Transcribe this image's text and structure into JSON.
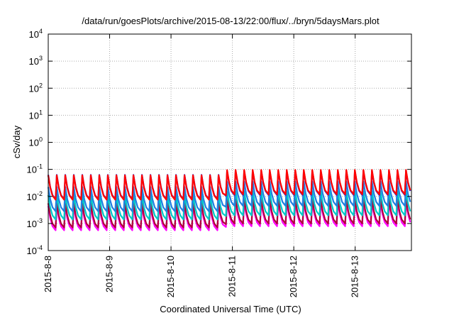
{
  "chart_data": {
    "type": "line",
    "title": "/data/run/goesPlots/archive/2015-08-13/22:00/flux/../bryn/5daysMars.plot",
    "xlabel": "Coordinated Universal Time (UTC)",
    "ylabel": "cSv/day",
    "xlim": [
      "2015-08-08",
      "2015-08-13 22:00"
    ],
    "ylim": [
      0.0001,
      10000
    ],
    "yscale": "log",
    "grid": true,
    "legend": "none",
    "x_ticks": [
      "2015-8-8",
      "2015-8-9",
      "2015-8-10",
      "2015-8-11",
      "2015-8-12",
      "2015-8-13"
    ],
    "y_ticks": [
      {
        "value": 0.0001,
        "base": "10",
        "exp": "-4"
      },
      {
        "value": 0.001,
        "base": "10",
        "exp": "-3"
      },
      {
        "value": 0.01,
        "base": "10",
        "exp": "-2"
      },
      {
        "value": 0.1,
        "base": "10",
        "exp": "-1"
      },
      {
        "value": 1,
        "base": "10",
        "exp": "0"
      },
      {
        "value": 10,
        "base": "10",
        "exp": "1"
      },
      {
        "value": 100,
        "base": "10",
        "exp": "2"
      },
      {
        "value": 1000,
        "base": "10",
        "exp": "3"
      },
      {
        "value": 10000,
        "base": "10",
        "exp": "4"
      }
    ],
    "x_start": "2015-08-08 00:00",
    "period_hours": 3.33,
    "cycle": [
      [
        0.0,
        0.0
      ],
      [
        0.7,
        -0.45
      ],
      [
        1.5,
        -0.75
      ],
      [
        2.6,
        -0.9
      ],
      [
        3.0,
        0.0
      ]
    ],
    "series": [
      {
        "color": "#ff00ff",
        "levels": [
          [
            0,
            -2.35
          ],
          [
            67,
            -2.35
          ],
          [
            70,
            -2.2
          ],
          [
            138,
            -2.2
          ]
        ]
      },
      {
        "color": "#b0003a",
        "levels": [
          [
            0,
            -2.25
          ],
          [
            67,
            -2.25
          ],
          [
            70,
            -2.1
          ],
          [
            138,
            -2.1
          ]
        ]
      },
      {
        "color": "#00c8c8",
        "levels": [
          [
            0,
            -1.95
          ],
          [
            67,
            -1.95
          ],
          [
            70,
            -1.8
          ],
          [
            138,
            -1.8
          ]
        ]
      },
      {
        "color": "#1f7fe0",
        "levels": [
          [
            0,
            -1.65
          ],
          [
            67,
            -1.65
          ],
          [
            70,
            -1.45
          ],
          [
            138,
            -1.45
          ]
        ]
      },
      {
        "color": "#3030d0",
        "levels": [
          [
            0,
            -1.2
          ],
          [
            67,
            -1.2
          ],
          [
            70,
            -1.05
          ],
          [
            138,
            -1.05
          ]
        ]
      },
      {
        "color": "#ff0000",
        "levels": [
          [
            0,
            -1.22
          ],
          [
            67,
            -1.22
          ],
          [
            70,
            -1.02
          ],
          [
            138,
            -1.02
          ]
        ]
      }
    ]
  }
}
